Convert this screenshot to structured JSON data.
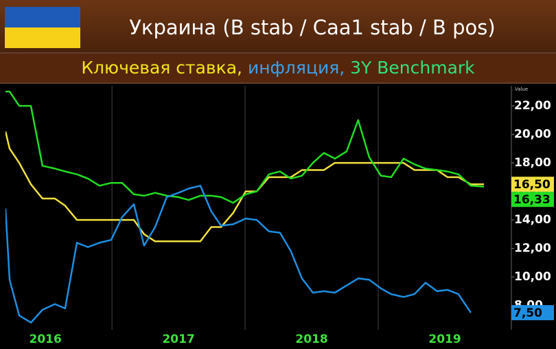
{
  "chart_data": {
    "type": "line",
    "title": "Украина (B stab / Caa1 stab / B pos)",
    "subtitle_parts": [
      {
        "text": "Ключевая ставка,",
        "color": "#f2e51e"
      },
      {
        "text": "инфляция,",
        "color": "#3aa2ea"
      },
      {
        "text": "3Y Benchmark",
        "color": "#33e07a"
      }
    ],
    "y_axis_label": "Value",
    "x": [
      2016.2,
      2016.231,
      2016.303,
      2016.391,
      2016.478,
      2016.571,
      2016.648,
      2016.736,
      2016.819,
      2016.906,
      2016.994,
      2017.076,
      2017.164,
      2017.241,
      2017.324,
      2017.411,
      2017.499,
      2017.576,
      2017.664,
      2017.746,
      2017.819,
      2017.911,
      2018.004,
      2018.087,
      2018.179,
      2018.262,
      2018.344,
      2018.427,
      2018.509,
      2018.592,
      2018.674,
      2018.762,
      2018.849,
      2018.932,
      2019.02,
      2019.097,
      2019.19,
      2019.272,
      2019.355,
      2019.442,
      2019.52,
      2019.602,
      2019.695,
      2019.794
    ],
    "series": [
      {
        "name": "Ключевая ставка",
        "color": "#f0e040",
        "values": [
          20.2,
          19.0,
          18.0,
          16.5,
          15.5,
          15.5,
          15.0,
          14.0,
          14.0,
          14.0,
          14.0,
          14.0,
          14.0,
          13.0,
          12.5,
          12.5,
          12.5,
          12.5,
          12.5,
          13.5,
          13.5,
          14.5,
          16.0,
          16.0,
          17.0,
          17.0,
          17.0,
          17.5,
          17.5,
          17.5,
          18.0,
          18.0,
          18.0,
          18.0,
          18.0,
          18.0,
          18.0,
          17.5,
          17.5,
          17.5,
          17.0,
          17.0,
          16.5,
          16.5
        ],
        "end_value": {
          "value": 16.5,
          "label": "16,50"
        }
      },
      {
        "name": "3Y Benchmark",
        "color": "#22dd22",
        "values": [
          23.0,
          23.0,
          22.0,
          22.0,
          17.8,
          17.6,
          17.4,
          17.2,
          16.9,
          16.4,
          16.6,
          16.6,
          15.8,
          15.7,
          15.9,
          15.7,
          15.6,
          15.4,
          15.7,
          15.7,
          15.6,
          15.2,
          15.8,
          16.0,
          17.2,
          17.4,
          16.9,
          17.1,
          18.0,
          18.7,
          18.3,
          18.8,
          21.0,
          18.4,
          17.1,
          17.0,
          18.3,
          17.9,
          17.6,
          17.5,
          17.4,
          17.2,
          16.4,
          16.33
        ],
        "end_value": {
          "value": 16.33,
          "label": "16,33"
        }
      },
      {
        "name": "инфляция",
        "color": "#1e8fe0",
        "values": [
          14.8,
          9.8,
          7.3,
          6.8,
          7.7,
          8.1,
          7.8,
          12.4,
          12.1,
          12.4,
          12.6,
          14.2,
          15.1,
          12.2,
          13.5,
          15.6,
          15.9,
          16.2,
          16.4,
          14.6,
          13.6,
          13.7,
          14.1,
          14.0,
          13.2,
          13.1,
          11.8,
          9.9,
          8.9,
          9.0,
          8.9,
          9.4,
          9.9,
          9.8,
          9.2,
          8.8,
          8.6,
          8.8,
          9.6,
          9.0,
          9.1,
          8.8,
          7.5,
          null
        ],
        "end_value": {
          "value": 7.5,
          "label": "7,50"
        }
      }
    ],
    "xlim": [
      2016.2,
      2020.0
    ],
    "ylim": [
      6.3,
      23.4
    ],
    "xticks": [
      {
        "value": 2016.5,
        "label": "2016"
      },
      {
        "value": 2017.5,
        "label": "2017"
      },
      {
        "value": 2018.5,
        "label": "2018"
      },
      {
        "value": 2019.5,
        "label": "2019"
      }
    ],
    "xgrid": [
      2017,
      2018,
      2019
    ],
    "yticks": [
      {
        "value": 8,
        "label": "8,00"
      },
      {
        "value": 10,
        "label": "10,00"
      },
      {
        "value": 12,
        "label": "12,00"
      },
      {
        "value": 14,
        "label": "14,00"
      },
      {
        "value": 16,
        "label": "16,00"
      },
      {
        "value": 18,
        "label": "18,00"
      },
      {
        "value": 20,
        "label": "20,00"
      },
      {
        "value": 22,
        "label": "22,00"
      }
    ]
  }
}
